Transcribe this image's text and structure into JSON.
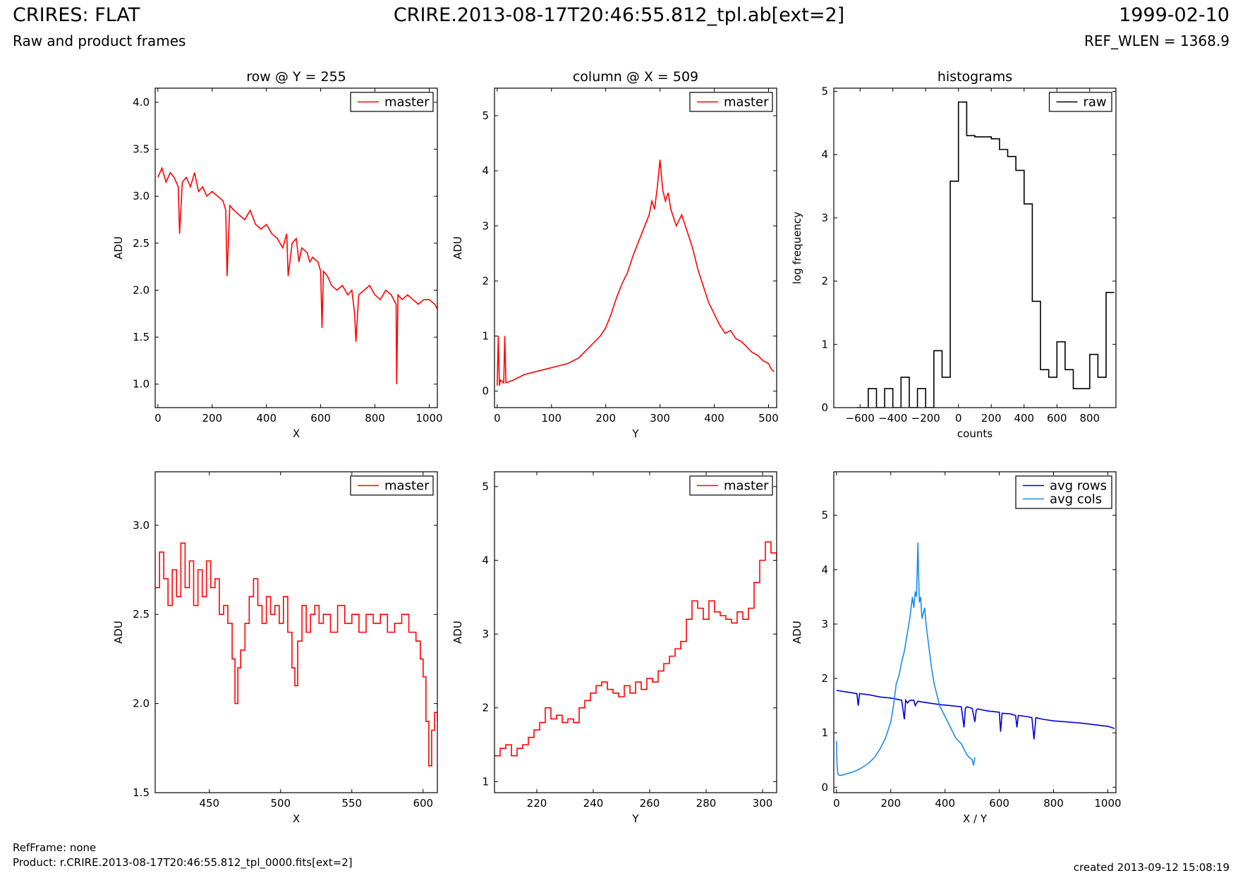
{
  "header": {
    "title": "CRIRES: FLAT",
    "subtitle": "Raw and product frames",
    "center_title": "CRIRE.2013-08-17T20:46:55.812_tpl.ab[ext=2]",
    "date": "1999-02-10",
    "ref_wlen": "REF_WLEN = 1368.9"
  },
  "footer": {
    "ref_frame": "RefFrame: none",
    "product": "Product: r.CRIRE.2013-08-17T20:46:55.812_tpl_0000.fits[ext=2]",
    "created": "created 2013-09-12 15:08:19"
  },
  "colors": {
    "master": "#ff0000",
    "raw": "#000000",
    "avg_rows": "#0000dd",
    "avg_cols": "#1a8ce8"
  },
  "chart_data": [
    {
      "type": "line",
      "title": "row @ Y = 255",
      "xlabel": "X",
      "ylabel": "ADU",
      "xlim": [
        -10,
        1030
      ],
      "ylim": [
        0.75,
        4.15
      ],
      "xticks": [
        0,
        200,
        400,
        600,
        800,
        1000
      ],
      "yticks": [
        1.0,
        1.5,
        2.0,
        2.5,
        3.0,
        3.5,
        4.0
      ],
      "ytick_labels": [
        "1.0",
        "1.5",
        "2.0",
        "2.5",
        "3.0",
        "3.5",
        "4.0"
      ],
      "legend": "top-right",
      "series": [
        {
          "name": "master",
          "color": "#ff0000",
          "x": [
            0,
            15,
            30,
            45,
            60,
            75,
            80,
            90,
            105,
            120,
            135,
            150,
            165,
            180,
            200,
            220,
            240,
            250,
            255,
            265,
            280,
            300,
            320,
            340,
            360,
            380,
            400,
            420,
            440,
            460,
            475,
            480,
            495,
            510,
            520,
            530,
            550,
            560,
            570,
            590,
            600,
            605,
            610,
            625,
            640,
            660,
            680,
            700,
            715,
            725,
            730,
            740,
            760,
            780,
            800,
            820,
            840,
            860,
            878,
            880,
            885,
            900,
            920,
            940,
            960,
            980,
            1000,
            1020,
            1030
          ],
          "y": [
            3.2,
            3.3,
            3.15,
            3.25,
            3.2,
            3.1,
            2.6,
            3.15,
            3.2,
            3.1,
            3.25,
            3.05,
            3.1,
            3.0,
            3.05,
            3.0,
            2.95,
            2.85,
            2.15,
            2.9,
            2.85,
            2.8,
            2.75,
            2.85,
            2.7,
            2.65,
            2.7,
            2.6,
            2.55,
            2.45,
            2.6,
            2.15,
            2.5,
            2.55,
            2.3,
            2.45,
            2.4,
            2.3,
            2.35,
            2.3,
            2.2,
            1.6,
            2.2,
            2.15,
            2.05,
            2.0,
            2.05,
            1.95,
            2.0,
            1.75,
            1.45,
            1.95,
            2.0,
            2.05,
            1.95,
            1.9,
            2.0,
            1.95,
            1.85,
            1.0,
            1.95,
            1.9,
            1.95,
            1.9,
            1.85,
            1.9,
            1.9,
            1.85,
            1.8
          ]
        }
      ]
    },
    {
      "type": "line",
      "title": "column @ X = 509",
      "xlabel": "Y",
      "ylabel": "ADU",
      "xlim": [
        -5,
        515
      ],
      "ylim": [
        -0.3,
        5.5
      ],
      "xticks": [
        0,
        100,
        200,
        300,
        400,
        500
      ],
      "yticks": [
        0,
        1,
        2,
        3,
        4,
        5
      ],
      "ytick_labels": [
        "0",
        "1",
        "2",
        "3",
        "4",
        "5"
      ],
      "legend": "top-right",
      "series": [
        {
          "name": "master",
          "color": "#ff0000",
          "x": [
            0,
            2,
            4,
            6,
            12,
            14,
            16,
            30,
            50,
            70,
            90,
            110,
            130,
            150,
            170,
            190,
            200,
            210,
            220,
            230,
            240,
            250,
            260,
            270,
            280,
            285,
            290,
            295,
            300,
            305,
            310,
            315,
            320,
            330,
            340,
            350,
            360,
            370,
            380,
            390,
            400,
            410,
            420,
            430,
            440,
            450,
            460,
            470,
            480,
            490,
            500,
            505,
            510
          ],
          "y": [
            0.1,
            1.0,
            0.1,
            0.2,
            0.15,
            1.0,
            0.15,
            0.2,
            0.3,
            0.35,
            0.4,
            0.45,
            0.5,
            0.6,
            0.8,
            1.0,
            1.15,
            1.4,
            1.7,
            1.95,
            2.15,
            2.45,
            2.7,
            2.95,
            3.2,
            3.45,
            3.3,
            3.7,
            4.2,
            3.65,
            3.45,
            3.6,
            3.3,
            3.0,
            3.2,
            2.9,
            2.6,
            2.2,
            1.9,
            1.6,
            1.4,
            1.2,
            1.05,
            1.1,
            0.95,
            0.9,
            0.8,
            0.7,
            0.65,
            0.55,
            0.5,
            0.4,
            0.35
          ]
        }
      ]
    },
    {
      "type": "line",
      "title": "histograms",
      "xlabel": "counts",
      "ylabel": "log frequency",
      "xlim": [
        -760,
        960
      ],
      "ylim": [
        0,
        5.05
      ],
      "xticks": [
        -600,
        -400,
        -200,
        0,
        200,
        400,
        600,
        800
      ],
      "xtick_labels": [
        "−600",
        "−400",
        "−200",
        "0",
        "200",
        "400",
        "600",
        "800"
      ],
      "yticks": [
        0,
        1,
        2,
        3,
        4,
        5
      ],
      "ytick_labels": [
        "0",
        "1",
        "2",
        "3",
        "4",
        "5"
      ],
      "legend": "top-right",
      "series": [
        {
          "name": "raw",
          "color": "#000000",
          "step": true,
          "x": [
            -620,
            -600,
            -550,
            -500,
            -450,
            -400,
            -350,
            -300,
            -250,
            -200,
            -150,
            -100,
            -50,
            0,
            50,
            100,
            150,
            200,
            250,
            300,
            350,
            400,
            450,
            500,
            550,
            600,
            650,
            700,
            750,
            800,
            850,
            900,
            950
          ],
          "y": [
            0,
            0,
            0.3,
            0,
            0.3,
            0,
            0.48,
            0,
            0.3,
            0,
            0.9,
            0.48,
            3.58,
            4.83,
            4.3,
            4.28,
            4.28,
            4.25,
            4.08,
            3.97,
            3.75,
            3.22,
            1.68,
            0.6,
            0.48,
            1.04,
            0.6,
            0.3,
            0.3,
            0.84,
            0.48,
            1.82,
            1.82
          ]
        }
      ]
    },
    {
      "type": "line",
      "title": "",
      "xlabel": "X",
      "ylabel": "ADU",
      "xlim": [
        412,
        610
      ],
      "ylim": [
        1.5,
        3.3
      ],
      "xticks": [
        450,
        500,
        550,
        600
      ],
      "yticks": [
        1.5,
        2.0,
        2.5,
        3.0
      ],
      "ytick_labels": [
        "1.5",
        "2.0",
        "2.5",
        "3.0"
      ],
      "legend": "top-right",
      "series": [
        {
          "name": "master",
          "color": "#ff0000",
          "step": true,
          "x": [
            412,
            415,
            418,
            421,
            424,
            427,
            430,
            433,
            436,
            439,
            442,
            445,
            448,
            451,
            454,
            457,
            460,
            463,
            466,
            468,
            470,
            472,
            475,
            478,
            481,
            484,
            487,
            490,
            493,
            496,
            499,
            502,
            505,
            508,
            510,
            512,
            515,
            518,
            521,
            524,
            527,
            530,
            535,
            540,
            545,
            550,
            555,
            560,
            565,
            570,
            575,
            580,
            585,
            590,
            595,
            598,
            600,
            602,
            604,
            606,
            608,
            610
          ],
          "y": [
            2.65,
            2.85,
            2.7,
            2.55,
            2.75,
            2.6,
            2.9,
            2.65,
            2.8,
            2.55,
            2.75,
            2.6,
            2.8,
            2.65,
            2.7,
            2.5,
            2.55,
            2.45,
            2.25,
            2.0,
            2.2,
            2.3,
            2.45,
            2.6,
            2.7,
            2.55,
            2.45,
            2.6,
            2.5,
            2.55,
            2.45,
            2.6,
            2.4,
            2.2,
            2.1,
            2.35,
            2.55,
            2.4,
            2.5,
            2.55,
            2.45,
            2.5,
            2.4,
            2.55,
            2.45,
            2.5,
            2.4,
            2.5,
            2.45,
            2.5,
            2.4,
            2.45,
            2.5,
            2.4,
            2.35,
            2.25,
            2.15,
            1.9,
            1.65,
            1.85,
            1.95,
            1.9
          ]
        }
      ]
    },
    {
      "type": "line",
      "title": "",
      "xlabel": "Y",
      "ylabel": "ADU",
      "xlim": [
        205,
        305
      ],
      "ylim": [
        0.85,
        5.2
      ],
      "xticks": [
        220,
        240,
        260,
        280,
        300
      ],
      "yticks": [
        1,
        2,
        3,
        4,
        5
      ],
      "ytick_labels": [
        "1",
        "2",
        "3",
        "4",
        "5"
      ],
      "legend": "top-right",
      "series": [
        {
          "name": "master",
          "color": "#ff0000",
          "step": true,
          "x": [
            205,
            207,
            209,
            211,
            213,
            215,
            217,
            219,
            221,
            223,
            225,
            227,
            229,
            231,
            233,
            235,
            237,
            239,
            241,
            243,
            245,
            247,
            249,
            251,
            253,
            255,
            257,
            259,
            261,
            263,
            265,
            267,
            269,
            271,
            273,
            275,
            277,
            279,
            281,
            283,
            285,
            287,
            289,
            291,
            293,
            295,
            297,
            299,
            301,
            303,
            305
          ],
          "y": [
            1.35,
            1.45,
            1.5,
            1.35,
            1.45,
            1.5,
            1.6,
            1.7,
            1.8,
            2.0,
            1.85,
            1.9,
            1.8,
            1.85,
            1.8,
            2.0,
            2.1,
            2.2,
            2.3,
            2.35,
            2.25,
            2.2,
            2.15,
            2.3,
            2.2,
            2.35,
            2.25,
            2.4,
            2.35,
            2.5,
            2.6,
            2.7,
            2.8,
            2.9,
            3.2,
            3.45,
            3.35,
            3.2,
            3.45,
            3.3,
            3.25,
            3.2,
            3.15,
            3.3,
            3.2,
            3.35,
            3.7,
            4.0,
            4.25,
            4.1,
            4.0
          ]
        }
      ]
    },
    {
      "type": "line",
      "title": "",
      "xlabel": "X / Y",
      "ylabel": "ADU",
      "xlim": [
        -10,
        1030
      ],
      "ylim": [
        -0.1,
        5.8
      ],
      "xticks": [
        0,
        200,
        400,
        600,
        800,
        1000
      ],
      "yticks": [
        0,
        1,
        2,
        3,
        4,
        5
      ],
      "ytick_labels": [
        "0",
        "1",
        "2",
        "3",
        "4",
        "5"
      ],
      "legend": "top-right",
      "series": [
        {
          "name": "avg rows",
          "color": "#0000dd",
          "x": [
            0,
            40,
            75,
            80,
            85,
            120,
            160,
            200,
            240,
            250,
            255,
            262,
            270,
            285,
            290,
            300,
            340,
            380,
            420,
            460,
            470,
            475,
            480,
            500,
            510,
            515,
            520,
            560,
            600,
            605,
            610,
            640,
            660,
            665,
            670,
            700,
            720,
            728,
            735,
            760,
            800,
            850,
            900,
            950,
            1000,
            1025
          ],
          "y": [
            1.78,
            1.75,
            1.72,
            1.5,
            1.72,
            1.7,
            1.66,
            1.64,
            1.6,
            1.25,
            1.6,
            1.55,
            1.6,
            1.6,
            1.5,
            1.58,
            1.55,
            1.52,
            1.5,
            1.48,
            1.1,
            1.45,
            1.48,
            1.45,
            1.2,
            1.42,
            1.44,
            1.4,
            1.38,
            1.02,
            1.36,
            1.35,
            1.32,
            1.1,
            1.32,
            1.3,
            1.28,
            0.88,
            1.28,
            1.25,
            1.22,
            1.2,
            1.18,
            1.15,
            1.12,
            1.08
          ]
        },
        {
          "name": "avg cols",
          "color": "#1a8ce8",
          "x": [
            0,
            2,
            5,
            10,
            20,
            40,
            60,
            80,
            100,
            120,
            140,
            160,
            180,
            200,
            210,
            220,
            230,
            240,
            250,
            260,
            270,
            280,
            285,
            290,
            295,
            300,
            305,
            310,
            315,
            320,
            325,
            330,
            340,
            350,
            360,
            370,
            380,
            390,
            400,
            410,
            420,
            430,
            440,
            450,
            460,
            470,
            480,
            490,
            500,
            505,
            510
          ],
          "y": [
            0.85,
            0.4,
            0.25,
            0.22,
            0.22,
            0.25,
            0.28,
            0.32,
            0.38,
            0.45,
            0.55,
            0.7,
            0.9,
            1.2,
            1.5,
            1.9,
            2.05,
            2.3,
            2.5,
            2.8,
            3.1,
            3.5,
            3.3,
            3.6,
            3.5,
            4.5,
            3.4,
            3.5,
            3.1,
            3.2,
            3.3,
            3.0,
            2.6,
            2.2,
            1.9,
            1.7,
            1.5,
            1.4,
            1.3,
            1.2,
            1.1,
            1.0,
            0.9,
            0.85,
            0.8,
            0.7,
            0.6,
            0.55,
            0.5,
            0.4,
            0.55
          ]
        }
      ]
    }
  ]
}
